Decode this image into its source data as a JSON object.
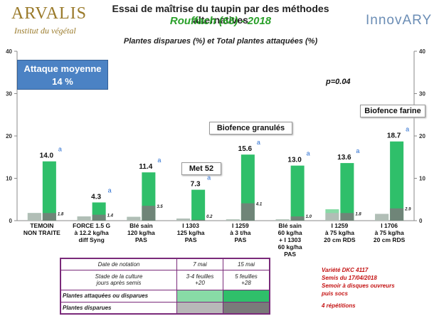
{
  "header": {
    "logo_left_brand": "ARVALIS",
    "logo_left_sub": "Institut du végétal",
    "title": "Essai de maîtrise du taupin par des méthodes alternatives",
    "subtitle": "Rouffach (68) - 2018",
    "logo_right_text": "InnovARY"
  },
  "chart_data": {
    "type": "bar",
    "title": "Plantes disparues (%) et Total plantes attaquées (%)",
    "ylim": [
      0,
      40
    ],
    "yticks": [
      0,
      10,
      20,
      30,
      40
    ],
    "categories": [
      [
        "TEMOIN",
        "NON TRAITE"
      ],
      [
        "FORCE 1.5 G",
        "à 12.2 kg/ha",
        "diff Syng"
      ],
      [
        "Blé sain",
        "120 kg/ha",
        "PAS"
      ],
      [
        "I 1303",
        "125 kg/ha",
        "PAS"
      ],
      [
        "I 1259",
        "à 3 t/ha",
        "PAS"
      ],
      [
        "Blé sain",
        "60 kg/ha",
        "+ I 1303",
        "60 kg/ha",
        "PAS"
      ],
      [
        "I 1259",
        "à 75 kg/ha",
        "20 cm RDS"
      ],
      [
        "I 1706",
        "à 75 kg/ha",
        "20 cm RDS"
      ]
    ],
    "series": [
      {
        "date": "7 mai",
        "role": "light",
        "values": [
          1.8,
          1.0,
          0.9,
          0.5,
          0.3,
          0.3,
          2.7,
          1.6
        ]
      },
      {
        "date": "7 mai",
        "role": "dark",
        "values": [
          1.8,
          1.0,
          0.9,
          0.5,
          0.3,
          0.3,
          1.8,
          1.6
        ]
      },
      {
        "date": "15 mai",
        "role": "attacked",
        "values": [
          14.0,
          4.3,
          11.4,
          7.3,
          15.6,
          13.0,
          13.6,
          18.7
        ]
      },
      {
        "date": "15 mai",
        "role": "disappeared",
        "values": [
          1.8,
          1.4,
          3.5,
          0.2,
          4.1,
          1.0,
          1.8,
          2.9
        ]
      }
    ],
    "total_labels": [
      "14.0",
      "4.3",
      "11.4",
      "7.3",
      "15.6",
      "13.0",
      "13.6",
      "18.7"
    ],
    "disappeared_labels": [
      "1.8",
      "1.4",
      "3.5",
      "0.2",
      "4.1",
      "1.0",
      "1.8",
      "2.9"
    ],
    "stat_letters": [
      "a",
      "a",
      "a",
      "a",
      "a",
      "a",
      "a",
      "a"
    ],
    "colors": {
      "attacked_15": "#2fbf6a",
      "disappeared_15": "#7a7a7a",
      "attacked_7": "#88dba6",
      "disappeared_7": "#b8b8b8",
      "letter": "#2a6ed0"
    }
  },
  "annotations": {
    "attack_line1": "Attaque moyenne",
    "attack_line2": "14 %",
    "p_value": "p=0.04",
    "granules": "Biofence granulés",
    "farine": "Biofence farine",
    "met": "Met 52"
  },
  "legend_table": {
    "date_header": "Date de notation",
    "date1": "7 mai",
    "date2": "15 mai",
    "stage_label_1": "Stade de la culture",
    "stage_label_2": "jours après semis",
    "stage1_a": "3-4 feuilles",
    "stage1_b": "+20",
    "stage2_a": "5 feuilles",
    "stage2_b": "+28",
    "row_attacked": "Plantes attaquées ou disparues",
    "row_disappeared": "Plantes disparues"
  },
  "notes": {
    "line1": "Variété  DKC 4117",
    "line2": "Semis du 17/04/2018",
    "line3": "Semoir à disques ouvreurs",
    "line4": "puis socs",
    "line5": "4 répétitions"
  }
}
